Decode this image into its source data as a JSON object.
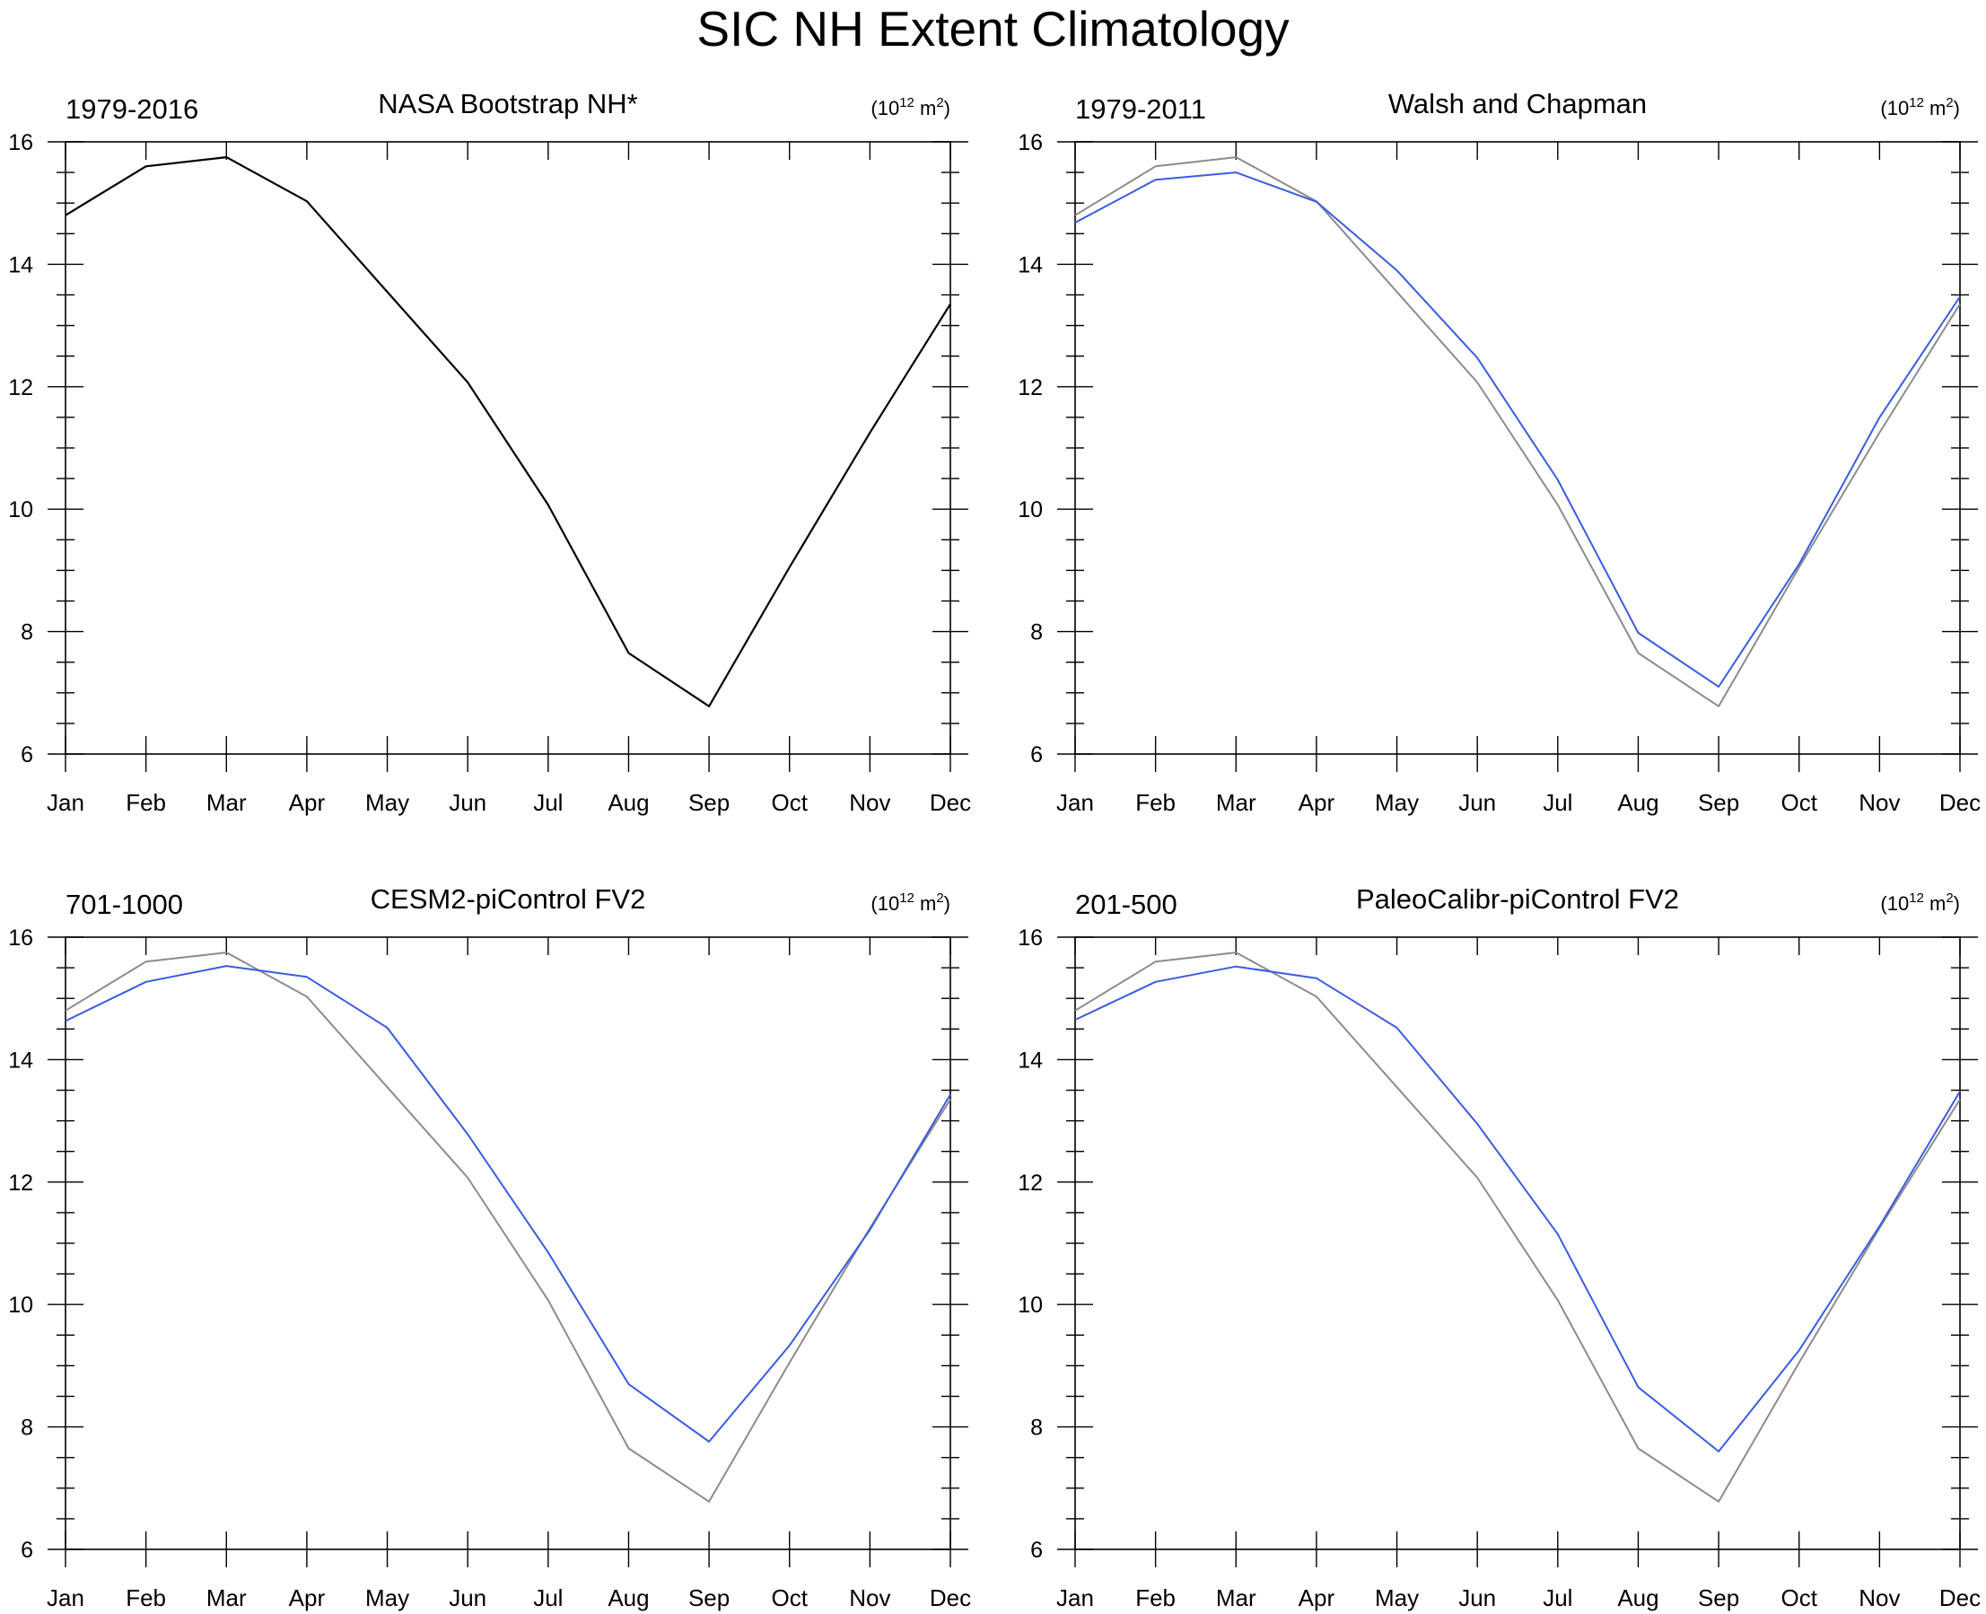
{
  "title": "SIC NH Extent Climatology",
  "colors": {
    "observation": "#8c8c8c",
    "model": "#3a5ce0",
    "single": "#000000",
    "axis": "#000000"
  },
  "chart_data": [
    {
      "type": "line",
      "period": "1979-2016",
      "title": "NASA Bootstrap NH*",
      "units": {
        "base": "(10",
        "exp": "12",
        "mid": " m",
        "exp2": "2",
        "end": ")"
      },
      "categories": [
        "Jan",
        "Feb",
        "Mar",
        "Apr",
        "May",
        "Jun",
        "Jul",
        "Aug",
        "Sep",
        "Oct",
        "Nov",
        "Dec"
      ],
      "ylim": [
        6,
        16
      ],
      "yticks": [
        6,
        8,
        10,
        12,
        14,
        16
      ],
      "series": [
        {
          "name": "NASA Bootstrap NH*",
          "role": "single",
          "values": [
            14.8,
            15.6,
            15.75,
            15.03,
            13.55,
            12.07,
            10.07,
            7.65,
            6.78,
            9.05,
            11.25,
            13.35
          ]
        }
      ]
    },
    {
      "type": "line",
      "period": "1979-2011",
      "title": "Walsh and Chapman",
      "units": {
        "base": "(10",
        "exp": "12",
        "mid": " m",
        "exp2": "2",
        "end": ")"
      },
      "categories": [
        "Jan",
        "Feb",
        "Mar",
        "Apr",
        "May",
        "Jun",
        "Jul",
        "Aug",
        "Sep",
        "Oct",
        "Nov",
        "Dec"
      ],
      "ylim": [
        6,
        16
      ],
      "yticks": [
        6,
        8,
        10,
        12,
        14,
        16
      ],
      "series": [
        {
          "name": "NASA Bootstrap NH*",
          "role": "observation",
          "values": [
            14.8,
            15.6,
            15.75,
            15.03,
            13.55,
            12.07,
            10.07,
            7.65,
            6.78,
            9.05,
            11.25,
            13.35
          ]
        },
        {
          "name": "Walsh and Chapman",
          "role": "model",
          "values": [
            14.68,
            15.38,
            15.5,
            15.02,
            13.9,
            12.47,
            10.48,
            7.98,
            7.1,
            9.1,
            11.5,
            13.47
          ]
        }
      ]
    },
    {
      "type": "line",
      "period": "701-1000",
      "title": "CESM2-piControl FV2",
      "units": {
        "base": "(10",
        "exp": "12",
        "mid": " m",
        "exp2": "2",
        "end": ")"
      },
      "categories": [
        "Jan",
        "Feb",
        "Mar",
        "Apr",
        "May",
        "Jun",
        "Jul",
        "Aug",
        "Sep",
        "Oct",
        "Nov",
        "Dec"
      ],
      "ylim": [
        6,
        16
      ],
      "yticks": [
        6,
        8,
        10,
        12,
        14,
        16
      ],
      "series": [
        {
          "name": "NASA Bootstrap NH*",
          "role": "observation",
          "values": [
            14.8,
            15.6,
            15.75,
            15.03,
            13.55,
            12.07,
            10.07,
            7.65,
            6.78,
            9.05,
            11.25,
            13.35
          ]
        },
        {
          "name": "CESM2-piControl FV2",
          "role": "model",
          "values": [
            14.63,
            15.27,
            15.53,
            15.35,
            14.52,
            12.78,
            10.85,
            8.7,
            7.76,
            9.33,
            11.22,
            13.43
          ]
        }
      ]
    },
    {
      "type": "line",
      "period": "201-500",
      "title": "PaleoCalibr-piControl FV2",
      "units": {
        "base": "(10",
        "exp": "12",
        "mid": " m",
        "exp2": "2",
        "end": ")"
      },
      "categories": [
        "Jan",
        "Feb",
        "Mar",
        "Apr",
        "May",
        "Jun",
        "Jul",
        "Aug",
        "Sep",
        "Oct",
        "Nov",
        "Dec"
      ],
      "ylim": [
        6,
        16
      ],
      "yticks": [
        6,
        8,
        10,
        12,
        14,
        16
      ],
      "series": [
        {
          "name": "NASA Bootstrap NH*",
          "role": "observation",
          "values": [
            14.8,
            15.6,
            15.75,
            15.03,
            13.55,
            12.07,
            10.07,
            7.65,
            6.78,
            9.05,
            11.25,
            13.35
          ]
        },
        {
          "name": "PaleoCalibr-piControl FV2",
          "role": "model",
          "values": [
            14.65,
            15.27,
            15.52,
            15.33,
            14.52,
            12.95,
            11.15,
            8.65,
            7.6,
            9.25,
            11.28,
            13.48
          ]
        }
      ]
    }
  ]
}
